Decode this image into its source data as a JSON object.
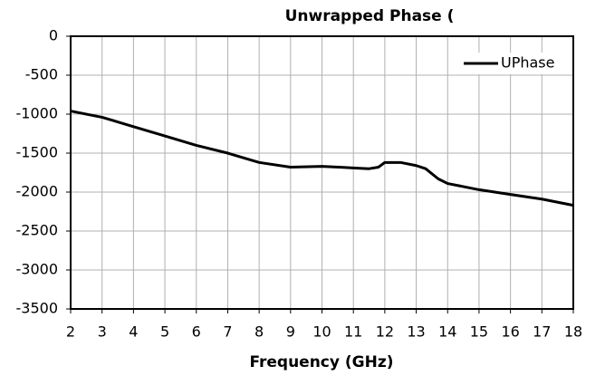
{
  "chart_data": {
    "type": "line",
    "title": "Unwrapped Phase (",
    "xlabel": "Frequency (GHz)",
    "x": [
      2,
      3,
      4,
      5,
      6,
      7,
      8,
      9,
      10,
      11,
      11.5,
      11.8,
      12,
      12.5,
      13,
      13.3,
      13.7,
      14,
      15,
      16,
      17,
      18
    ],
    "series": [
      {
        "name": "UPhase",
        "color": "#000000",
        "values": [
          -960,
          -1040,
          -1160,
          -1280,
          -1400,
          -1500,
          -1620,
          -1680,
          -1670,
          -1690,
          -1700,
          -1680,
          -1620,
          -1620,
          -1660,
          -1700,
          -1830,
          -1890,
          -1970,
          -2030,
          -2090,
          -2170
        ]
      }
    ],
    "xlim": [
      2,
      18
    ],
    "xticks": [
      2,
      3,
      4,
      5,
      6,
      7,
      8,
      9,
      10,
      11,
      12,
      13,
      14,
      15,
      16,
      17,
      18
    ],
    "ylim": [
      -3500,
      0
    ],
    "yticks": [
      0,
      -500,
      -1000,
      -1500,
      -2000,
      -2500,
      -3000,
      -3500
    ],
    "grid": true,
    "legend": "upper right"
  }
}
